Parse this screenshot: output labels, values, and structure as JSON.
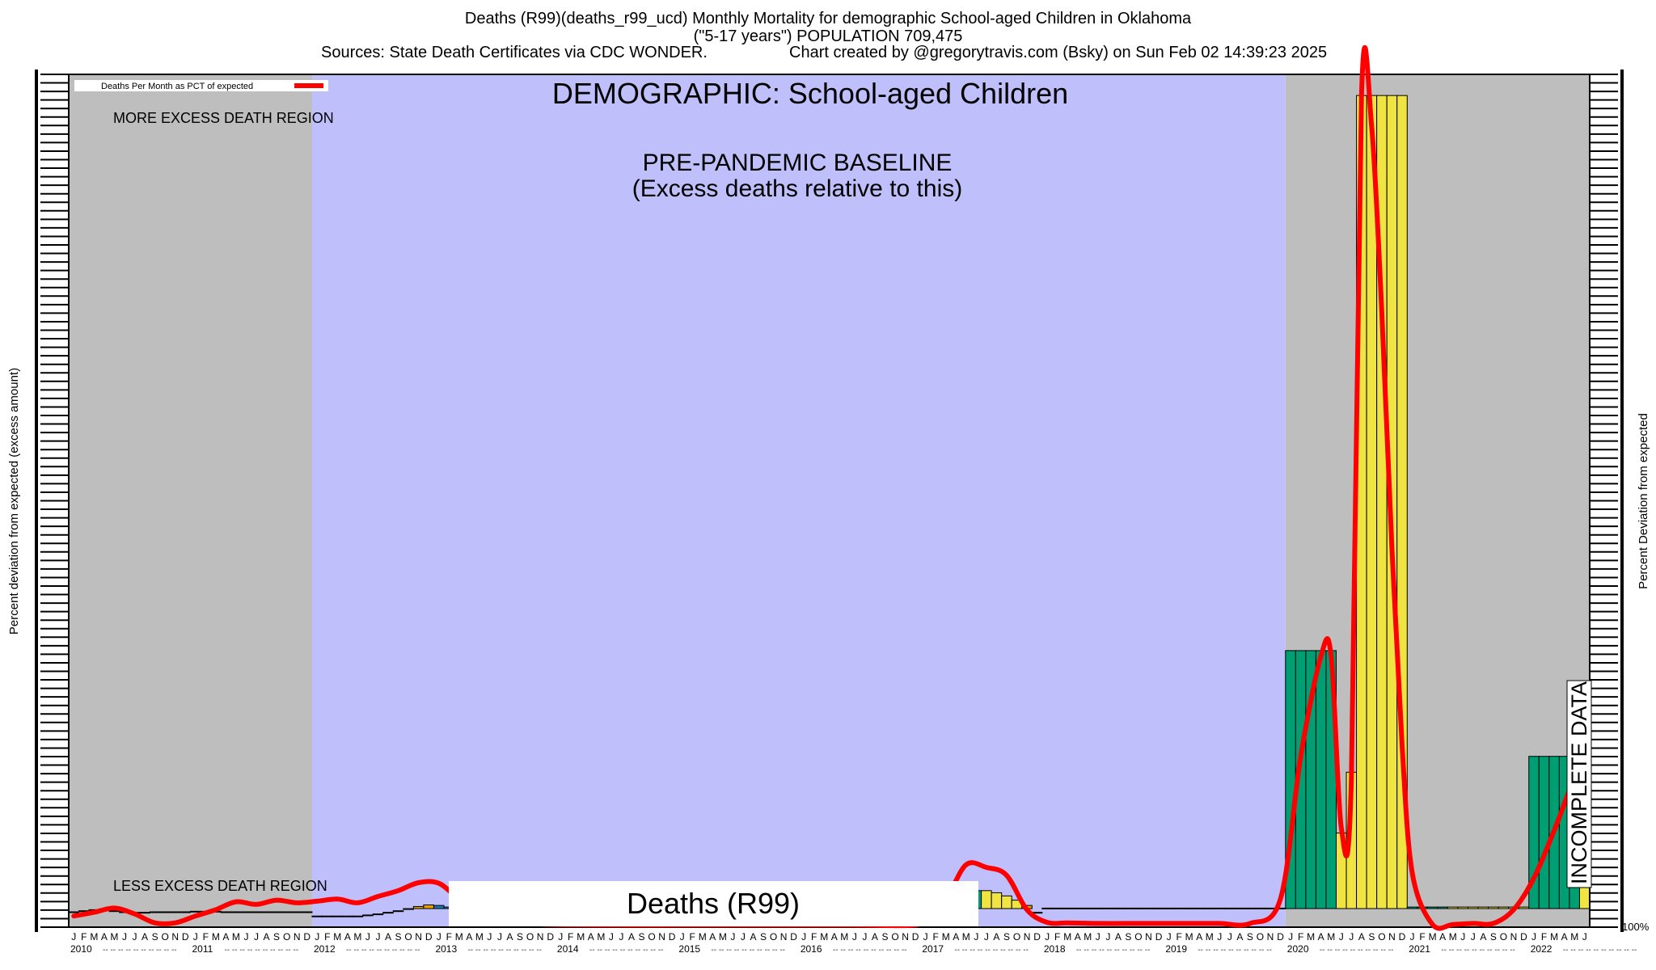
{
  "header": {
    "title_line1": "Deaths (R99)(deaths_r99_ucd)  Monthly Mortality for demographic School-aged Children in Oklahoma",
    "title_line2": "(\"5-17 years\") POPULATION 709,475",
    "sources": "Sources: State Death Certificates via CDC WONDER.",
    "credit": "Chart created by @gregorytravis.com (Bsky) on Sun Feb 02 14:39:23 2025"
  },
  "chart_data": {
    "type": "bar",
    "title": "DEMOGRAPHIC: School-aged Children",
    "cause_label": "Deaths (R99)",
    "ylabel_left": "Percent deviation from expected (excess amount)",
    "ylabel_right": "Percent Deviation from expected",
    "legend": {
      "label": "Deaths Per Month as PCT of expected",
      "color": "#ff0000",
      "placement": "top-left"
    },
    "regions": {
      "more": "MORE EXCESS DEATH REGION",
      "less": "LESS EXCESS DEATH REGION",
      "baseline_line1": "PRE-PANDEMIC BASELINE",
      "baseline_line2": "(Excess deaths relative to this)",
      "baseline_start": "2012-01",
      "baseline_end": "2019-12",
      "incomplete": "INCOMPLETE DATA",
      "baseline_color": "#bfbffc",
      "outside_color": "#bebebe"
    },
    "x_start": "2010-01",
    "x_end": "2022-06",
    "month_letters": [
      "J",
      "F",
      "M",
      "A",
      "M",
      "J",
      "J",
      "A",
      "S",
      "O",
      "N",
      "D"
    ],
    "years": [
      "2010",
      "2011",
      "2012",
      "2013",
      "2014",
      "2015",
      "2016",
      "2017",
      "2018",
      "2019",
      "2020",
      "2021",
      "2022"
    ],
    "right_tick_label": "100%",
    "y_pct_range": [
      -100,
      16000
    ],
    "bars": [
      {
        "month": "2010-01",
        "pct": 160,
        "color": "#1f77b4"
      },
      {
        "month": "2010-02",
        "pct": 180,
        "color": "#1f77b4"
      },
      {
        "month": "2010-03",
        "pct": 200,
        "color": "#1f77b4"
      },
      {
        "month": "2010-04",
        "pct": 200,
        "color": "#1f77b4"
      },
      {
        "month": "2010-05",
        "pct": 180,
        "color": "#1f77b4"
      },
      {
        "month": "2010-06",
        "pct": 160,
        "color": "#1f77b4"
      },
      {
        "month": "2010-07",
        "pct": 150,
        "color": "#f0e442"
      },
      {
        "month": "2010-08",
        "pct": 150,
        "color": "#f0e442"
      },
      {
        "month": "2010-09",
        "pct": 160,
        "color": "#e69f00"
      },
      {
        "month": "2010-10",
        "pct": 160,
        "color": "#e69f00"
      },
      {
        "month": "2010-11",
        "pct": 160,
        "color": "#e69f00"
      },
      {
        "month": "2010-12",
        "pct": 160,
        "color": "#e69f00"
      },
      {
        "month": "2011-01",
        "pct": 170,
        "color": "#1f77b4"
      },
      {
        "month": "2011-02",
        "pct": 170,
        "color": "#1f77b4"
      },
      {
        "month": "2011-03",
        "pct": 170,
        "color": "#1f77b4"
      },
      {
        "month": "2011-04",
        "pct": 160,
        "color": "#f0e442"
      },
      {
        "month": "2011-05",
        "pct": 160,
        "color": "#f0e442"
      },
      {
        "month": "2011-06",
        "pct": 160,
        "color": "#f0e442"
      },
      {
        "month": "2011-07",
        "pct": 160,
        "color": "#e69f00"
      },
      {
        "month": "2011-08",
        "pct": 160,
        "color": "#e69f00"
      },
      {
        "month": "2011-09",
        "pct": 160,
        "color": "#e69f00"
      },
      {
        "month": "2011-10",
        "pct": 160,
        "color": "#e69f00"
      },
      {
        "month": "2011-11",
        "pct": 160,
        "color": "#e69f00"
      },
      {
        "month": "2011-12",
        "pct": 160,
        "color": "#e69f00"
      },
      {
        "month": "2012-01",
        "pct": 80,
        "color": "#1f77b4"
      },
      {
        "month": "2012-02",
        "pct": 80,
        "color": "#1f77b4"
      },
      {
        "month": "2012-03",
        "pct": 80,
        "color": "#1f77b4"
      },
      {
        "month": "2012-04",
        "pct": 80,
        "color": "#1f77b4"
      },
      {
        "month": "2012-05",
        "pct": 80,
        "color": "#1f77b4"
      },
      {
        "month": "2012-06",
        "pct": 100,
        "color": "#f0e442"
      },
      {
        "month": "2012-07",
        "pct": 120,
        "color": "#f0e442"
      },
      {
        "month": "2012-08",
        "pct": 150,
        "color": "#f0e442"
      },
      {
        "month": "2012-09",
        "pct": 180,
        "color": "#e69f00"
      },
      {
        "month": "2012-10",
        "pct": 220,
        "color": "#e69f00"
      },
      {
        "month": "2012-11",
        "pct": 260,
        "color": "#e69f00"
      },
      {
        "month": "2012-12",
        "pct": 290,
        "color": "#e69f00"
      },
      {
        "month": "2013-01",
        "pct": 280,
        "color": "#1f77b4"
      },
      {
        "month": "2013-02",
        "pct": 250,
        "color": "#1f77b4"
      },
      {
        "month": "2017-03",
        "pct": 300,
        "color": "#1f77b4"
      },
      {
        "month": "2017-04",
        "pct": 450,
        "color": "#009e73"
      },
      {
        "month": "2017-05",
        "pct": 520,
        "color": "#009e73"
      },
      {
        "month": "2017-06",
        "pct": 560,
        "color": "#009e73"
      },
      {
        "month": "2017-07",
        "pct": 560,
        "color": "#f0e442"
      },
      {
        "month": "2017-08",
        "pct": 520,
        "color": "#f0e442"
      },
      {
        "month": "2017-09",
        "pct": 460,
        "color": "#f0e442"
      },
      {
        "month": "2017-10",
        "pct": 380,
        "color": "#f0e442"
      },
      {
        "month": "2017-11",
        "pct": 280,
        "color": "#e69f00"
      },
      {
        "month": "2017-12",
        "pct": 150,
        "color": "#e69f00"
      },
      {
        "month": "2018-01",
        "pct": 230,
        "color": "#1f77b4"
      },
      {
        "month": "2018-02",
        "pct": 230,
        "color": "#1f77b4"
      },
      {
        "month": "2018-03",
        "pct": 230,
        "color": "#009e73"
      },
      {
        "month": "2018-04",
        "pct": 230,
        "color": "#009e73"
      },
      {
        "month": "2018-05",
        "pct": 230,
        "color": "#009e73"
      },
      {
        "month": "2018-06",
        "pct": 230,
        "color": "#f0e442"
      },
      {
        "month": "2018-07",
        "pct": 230,
        "color": "#f0e442"
      },
      {
        "month": "2018-08",
        "pct": 230,
        "color": "#f0e442"
      },
      {
        "month": "2018-09",
        "pct": 230,
        "color": "#e69f00"
      },
      {
        "month": "2018-10",
        "pct": 230,
        "color": "#e69f00"
      },
      {
        "month": "2018-11",
        "pct": 230,
        "color": "#e69f00"
      },
      {
        "month": "2018-12",
        "pct": 230,
        "color": "#e69f00"
      },
      {
        "month": "2019-01",
        "pct": 230,
        "color": "#009e73"
      },
      {
        "month": "2019-02",
        "pct": 230,
        "color": "#009e73"
      },
      {
        "month": "2019-03",
        "pct": 230,
        "color": "#009e73"
      },
      {
        "month": "2019-04",
        "pct": 230,
        "color": "#009e73"
      },
      {
        "month": "2019-05",
        "pct": 230,
        "color": "#009e73"
      },
      {
        "month": "2019-06",
        "pct": 230,
        "color": "#009e73"
      },
      {
        "month": "2019-07",
        "pct": 230,
        "color": "#f0e442"
      },
      {
        "month": "2019-08",
        "pct": 230,
        "color": "#f0e442"
      },
      {
        "month": "2019-09",
        "pct": 230,
        "color": "#f0e442"
      },
      {
        "month": "2019-10",
        "pct": 230,
        "color": "#f0e442"
      },
      {
        "month": "2019-11",
        "pct": 230,
        "color": "#f0e442"
      },
      {
        "month": "2019-12",
        "pct": 230,
        "color": "#f0e442"
      },
      {
        "month": "2020-01",
        "pct": 5100,
        "color": "#009e73"
      },
      {
        "month": "2020-02",
        "pct": 5100,
        "color": "#009e73"
      },
      {
        "month": "2020-03",
        "pct": 5100,
        "color": "#009e73"
      },
      {
        "month": "2020-04",
        "pct": 5100,
        "color": "#009e73"
      },
      {
        "month": "2020-05",
        "pct": 5100,
        "color": "#009e73"
      },
      {
        "month": "2020-06",
        "pct": 1650,
        "color": "#f0e442"
      },
      {
        "month": "2020-07",
        "pct": 2800,
        "color": "#f0e442"
      },
      {
        "month": "2020-08",
        "pct": 15600,
        "color": "#f0e442"
      },
      {
        "month": "2020-09",
        "pct": 15600,
        "color": "#f0e442"
      },
      {
        "month": "2020-10",
        "pct": 15600,
        "color": "#f0e442"
      },
      {
        "month": "2020-11",
        "pct": 15600,
        "color": "#f0e442"
      },
      {
        "month": "2020-12",
        "pct": 15600,
        "color": "#f0e442"
      },
      {
        "month": "2021-01",
        "pct": 250,
        "color": "#009e73"
      },
      {
        "month": "2021-02",
        "pct": 250,
        "color": "#009e73"
      },
      {
        "month": "2021-03",
        "pct": 250,
        "color": "#009e73"
      },
      {
        "month": "2021-04",
        "pct": 250,
        "color": "#009e73"
      },
      {
        "month": "2021-05",
        "pct": 250,
        "color": "#f0e442"
      },
      {
        "month": "2021-06",
        "pct": 250,
        "color": "#f0e442"
      },
      {
        "month": "2021-07",
        "pct": 250,
        "color": "#f0e442"
      },
      {
        "month": "2021-08",
        "pct": 250,
        "color": "#f0e442"
      },
      {
        "month": "2021-09",
        "pct": 250,
        "color": "#f0e442"
      },
      {
        "month": "2021-10",
        "pct": 250,
        "color": "#f0e442"
      },
      {
        "month": "2021-11",
        "pct": 250,
        "color": "#f0e442"
      },
      {
        "month": "2021-12",
        "pct": 250,
        "color": "#f0e442"
      },
      {
        "month": "2022-01",
        "pct": 3100,
        "color": "#009e73"
      },
      {
        "month": "2022-02",
        "pct": 3100,
        "color": "#009e73"
      },
      {
        "month": "2022-03",
        "pct": 3100,
        "color": "#009e73"
      },
      {
        "month": "2022-04",
        "pct": 3100,
        "color": "#009e73"
      },
      {
        "month": "2022-05",
        "pct": 3100,
        "color": "#009e73"
      },
      {
        "month": "2022-06",
        "pct": 3100,
        "color": "#f0e442"
      }
    ],
    "series": [
      {
        "points": [
          [
            "2010-01",
            80
          ],
          [
            "2010-03",
            150
          ],
          [
            "2010-05",
            230
          ],
          [
            "2010-07",
            120
          ],
          [
            "2010-09",
            -50
          ],
          [
            "2010-11",
            -50
          ],
          [
            "2011-01",
            80
          ],
          [
            "2011-03",
            200
          ],
          [
            "2011-05",
            350
          ],
          [
            "2011-07",
            300
          ],
          [
            "2011-09",
            380
          ],
          [
            "2011-11",
            330
          ],
          [
            "2012-01",
            360
          ],
          [
            "2012-03",
            400
          ],
          [
            "2012-05",
            330
          ],
          [
            "2012-07",
            450
          ],
          [
            "2012-09",
            560
          ],
          [
            "2012-11",
            710
          ],
          [
            "2013-01",
            700
          ],
          [
            "2013-03",
            400
          ],
          [
            "2013-05",
            180
          ],
          [
            "2013-07",
            40
          ],
          [
            "2013-09",
            -60
          ],
          [
            "2013-11",
            -70
          ],
          [
            "2014-01",
            -80
          ],
          [
            "2014-06",
            -90
          ],
          [
            "2014-12",
            -90
          ],
          [
            "2015-06",
            -90
          ],
          [
            "2015-12",
            -90
          ],
          [
            "2016-06",
            -90
          ],
          [
            "2016-12",
            -90
          ],
          [
            "2017-01",
            100
          ],
          [
            "2017-03",
            400
          ],
          [
            "2017-05",
            1050
          ],
          [
            "2017-07",
            1000
          ],
          [
            "2017-09",
            850
          ],
          [
            "2017-11",
            200
          ],
          [
            "2018-01",
            -40
          ],
          [
            "2018-03",
            -50
          ],
          [
            "2018-06",
            -60
          ],
          [
            "2018-09",
            -60
          ],
          [
            "2018-12",
            -60
          ],
          [
            "2019-03",
            -60
          ],
          [
            "2019-06",
            -60
          ],
          [
            "2019-09",
            -60
          ],
          [
            "2019-12",
            400
          ],
          [
            "2020-02",
            3100
          ],
          [
            "2020-04",
            5000
          ],
          [
            "2020-05",
            5000
          ],
          [
            "2020-06",
            1750
          ],
          [
            "2020-07",
            2700
          ],
          [
            "2020-08",
            15600
          ],
          [
            "2020-09",
            15000
          ],
          [
            "2020-10",
            11500
          ],
          [
            "2020-11",
            7000
          ],
          [
            "2020-12",
            3300
          ],
          [
            "2021-01",
            900
          ],
          [
            "2021-03",
            -80
          ],
          [
            "2021-05",
            -80
          ],
          [
            "2021-07",
            -60
          ],
          [
            "2021-09",
            -60
          ],
          [
            "2021-11",
            200
          ],
          [
            "2022-01",
            800
          ],
          [
            "2022-03",
            1700
          ],
          [
            "2022-05",
            2700
          ],
          [
            "2022-06",
            3000
          ]
        ]
      }
    ]
  }
}
